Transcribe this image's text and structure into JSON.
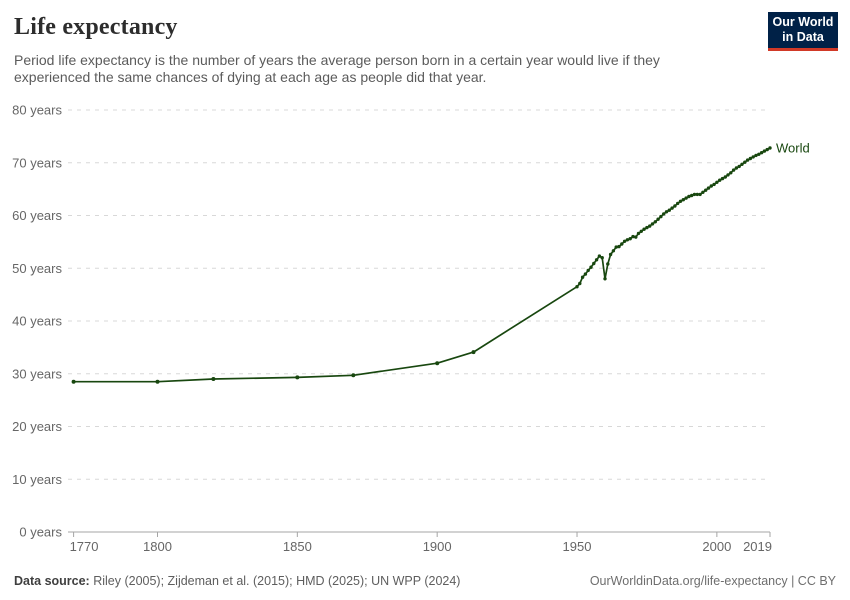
{
  "header": {
    "title": "Life expectancy",
    "subtitle_lines": [
      "Period life expectancy is the number of years the average person born in a certain year would live if they",
      "experienced the same chances of dying at each age as people did that year."
    ],
    "logo": {
      "line1": "Our World",
      "line2": "in Data",
      "bg_color": "#002147",
      "accent_color": "#d13927",
      "text_color": "#ffffff"
    }
  },
  "chart_data": {
    "type": "line",
    "title": "Life expectancy",
    "xlabel": "",
    "ylabel": "",
    "grid": "horizontal-dashed",
    "legend_position": "end-of-line-label",
    "x_range": [
      1768,
      2019
    ],
    "y_range": [
      0,
      80
    ],
    "x_ticks": [
      {
        "v": 1770,
        "label": "1770"
      },
      {
        "v": 1800,
        "label": "1800"
      },
      {
        "v": 1850,
        "label": "1850"
      },
      {
        "v": 1900,
        "label": "1900"
      },
      {
        "v": 1950,
        "label": "1950"
      },
      {
        "v": 2000,
        "label": "2000"
      },
      {
        "v": 2019,
        "label": "2019"
      }
    ],
    "y_ticks": [
      {
        "v": 0,
        "label": "0 years"
      },
      {
        "v": 10,
        "label": "10 years"
      },
      {
        "v": 20,
        "label": "20 years"
      },
      {
        "v": 30,
        "label": "30 years"
      },
      {
        "v": 40,
        "label": "40 years"
      },
      {
        "v": 50,
        "label": "50 years"
      },
      {
        "v": 60,
        "label": "60 years"
      },
      {
        "v": 70,
        "label": "70 years"
      },
      {
        "v": 80,
        "label": "80 years"
      }
    ],
    "series": [
      {
        "name": "World",
        "end_label": "World",
        "color": "#18470f",
        "marker_years": [
          1770,
          1800,
          1820,
          1850,
          1870,
          1900,
          1913
        ],
        "points": [
          [
            1770,
            28.5
          ],
          [
            1800,
            28.5
          ],
          [
            1820,
            29.0
          ],
          [
            1850,
            29.3
          ],
          [
            1870,
            29.7
          ],
          [
            1900,
            32.0
          ],
          [
            1913,
            34.1
          ],
          [
            1950,
            46.5
          ],
          [
            1951,
            47.1
          ],
          [
            1952,
            48.3
          ],
          [
            1953,
            48.9
          ],
          [
            1954,
            49.6
          ],
          [
            1955,
            50.2
          ],
          [
            1956,
            50.9
          ],
          [
            1957,
            51.6
          ],
          [
            1958,
            52.3
          ],
          [
            1959,
            52.0
          ],
          [
            1960,
            48.0
          ],
          [
            1961,
            50.8
          ],
          [
            1962,
            52.6
          ],
          [
            1963,
            53.3
          ],
          [
            1964,
            54.0
          ],
          [
            1965,
            54.1
          ],
          [
            1966,
            54.6
          ],
          [
            1967,
            55.1
          ],
          [
            1968,
            55.4
          ],
          [
            1969,
            55.6
          ],
          [
            1970,
            56.0
          ],
          [
            1971,
            55.9
          ],
          [
            1972,
            56.6
          ],
          [
            1973,
            57.0
          ],
          [
            1974,
            57.4
          ],
          [
            1975,
            57.7
          ],
          [
            1976,
            58.0
          ],
          [
            1977,
            58.4
          ],
          [
            1978,
            58.8
          ],
          [
            1979,
            59.3
          ],
          [
            1980,
            59.8
          ],
          [
            1981,
            60.3
          ],
          [
            1982,
            60.7
          ],
          [
            1983,
            61.0
          ],
          [
            1984,
            61.4
          ],
          [
            1985,
            61.8
          ],
          [
            1986,
            62.3
          ],
          [
            1987,
            62.7
          ],
          [
            1988,
            63.0
          ],
          [
            1989,
            63.3
          ],
          [
            1990,
            63.6
          ],
          [
            1991,
            63.8
          ],
          [
            1992,
            64.0
          ],
          [
            1993,
            64.0
          ],
          [
            1994,
            64.0
          ],
          [
            1995,
            64.4
          ],
          [
            1996,
            64.8
          ],
          [
            1997,
            65.2
          ],
          [
            1998,
            65.6
          ],
          [
            1999,
            65.9
          ],
          [
            2000,
            66.3
          ],
          [
            2001,
            66.7
          ],
          [
            2002,
            67.0
          ],
          [
            2003,
            67.3
          ],
          [
            2004,
            67.7
          ],
          [
            2005,
            68.1
          ],
          [
            2006,
            68.6
          ],
          [
            2007,
            69.0
          ],
          [
            2008,
            69.3
          ],
          [
            2009,
            69.7
          ],
          [
            2010,
            70.1
          ],
          [
            2011,
            70.5
          ],
          [
            2012,
            70.8
          ],
          [
            2013,
            71.1
          ],
          [
            2014,
            71.4
          ],
          [
            2015,
            71.6
          ],
          [
            2016,
            71.9
          ],
          [
            2017,
            72.2
          ],
          [
            2018,
            72.5
          ],
          [
            2019,
            72.8
          ]
        ]
      }
    ]
  },
  "footer": {
    "datasource_label": "Data source:",
    "datasource_value": " Riley (2005); Zijdeman et al. (2015); HMD (2025); UN WPP (2024)",
    "credit": "OurWorldinData.org/life-expectancy | CC BY"
  },
  "colors": {
    "background": "#ffffff",
    "title_text": "#2d2d2d",
    "subtitle_text": "#5b5b5b",
    "gridline": "#d8d8d8",
    "axis_line": "#a5a5a5",
    "tick_text": "#666666",
    "series_world": "#18470f"
  }
}
